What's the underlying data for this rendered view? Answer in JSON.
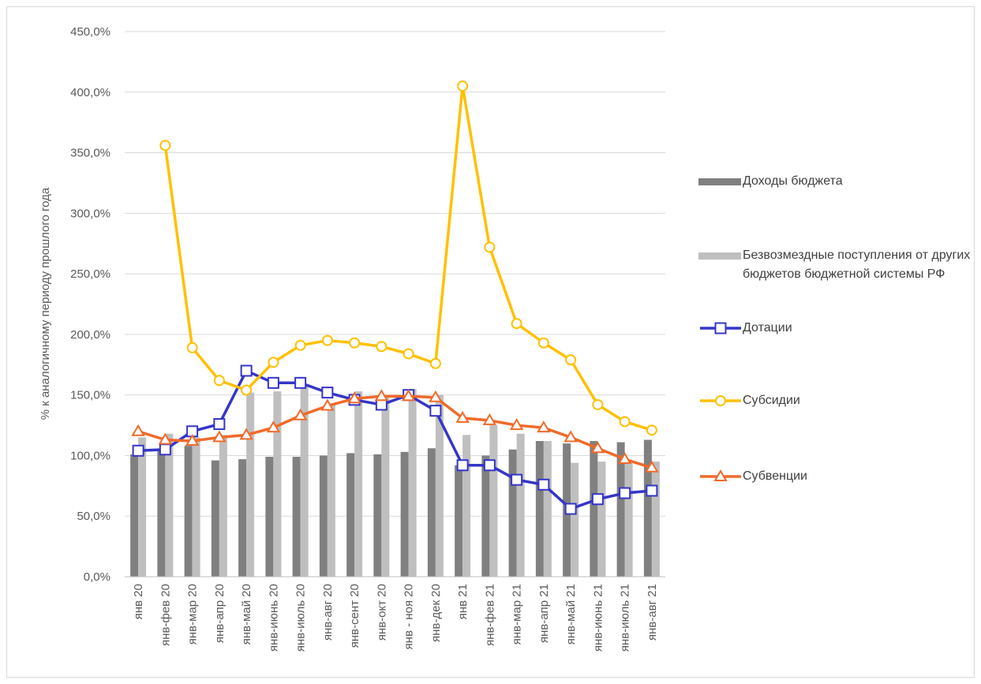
{
  "chart_data": {
    "type": "bar-line",
    "y_label": "% к аналогичному периоду прошлого года",
    "categories": [
      "янв 20",
      "янв-фев 20",
      "янв-мар 20",
      "янв-апр 20",
      "янв-май 20",
      "янв-июнь 20",
      "янв-июль 20",
      "янв-авг 20",
      "янв-сент 20",
      "янв-окт 20",
      "янв - ноя 20",
      "янв-дек 20",
      "янв 21",
      "янв-фев 21",
      "янв-мар 21",
      "янв-апр 21",
      "янв-май 21",
      "янв-июнь 21",
      "янв-июль 21",
      "янв-авг 21"
    ],
    "ylim": [
      0,
      450
    ],
    "yticks": [
      {
        "value": 0,
        "label": "0,0%"
      },
      {
        "value": 50,
        "label": "50,0%"
      },
      {
        "value": 100,
        "label": "100,0%"
      },
      {
        "value": 150,
        "label": "150,0%"
      },
      {
        "value": 200,
        "label": "200,0%"
      },
      {
        "value": 250,
        "label": "250,0%"
      },
      {
        "value": 300,
        "label": "300,0%"
      },
      {
        "value": 350,
        "label": "350,0%"
      },
      {
        "value": 400,
        "label": "400,0%"
      },
      {
        "value": 450,
        "label": "450,0%"
      }
    ],
    "grid": true,
    "series": [
      {
        "name": "Доходы бюджета",
        "kind": "bar",
        "color": "#808080",
        "values": [
          101,
          104,
          108,
          96,
          97,
          99,
          99,
          100,
          102,
          101,
          103,
          106,
          92,
          100,
          105,
          112,
          110,
          112,
          111,
          113
        ]
      },
      {
        "name": "Безвозмездные поступления от других бюджетов бюджетной системы РФ",
        "kind": "bar",
        "color": "#bfbfbf",
        "values": [
          115,
          118,
          115,
          117,
          152,
          153,
          157,
          143,
          153,
          148,
          155,
          150,
          117,
          125,
          118,
          112,
          94,
          95,
          95,
          95
        ]
      },
      {
        "name": "Дотации",
        "kind": "line",
        "marker": "square",
        "color": "#3535c8",
        "values": [
          104,
          105,
          120,
          126,
          170,
          160,
          160,
          152,
          146,
          142,
          150,
          137,
          92,
          92,
          80,
          76,
          56,
          64,
          69,
          71
        ]
      },
      {
        "name": "Субсидии",
        "kind": "line",
        "marker": "circle",
        "color": "#ffc000",
        "values": [
          null,
          356,
          189,
          162,
          154,
          177,
          191,
          195,
          193,
          190,
          184,
          176,
          405,
          272,
          209,
          193,
          179,
          142,
          128,
          121
        ]
      },
      {
        "name": "Субвенции",
        "kind": "line",
        "marker": "triangle",
        "color": "#f06a2a",
        "values": [
          120,
          113,
          112,
          115,
          117,
          123,
          133,
          141,
          147,
          149,
          149,
          148,
          131,
          129,
          125,
          123,
          115,
          106,
          97,
          90
        ]
      }
    ]
  }
}
